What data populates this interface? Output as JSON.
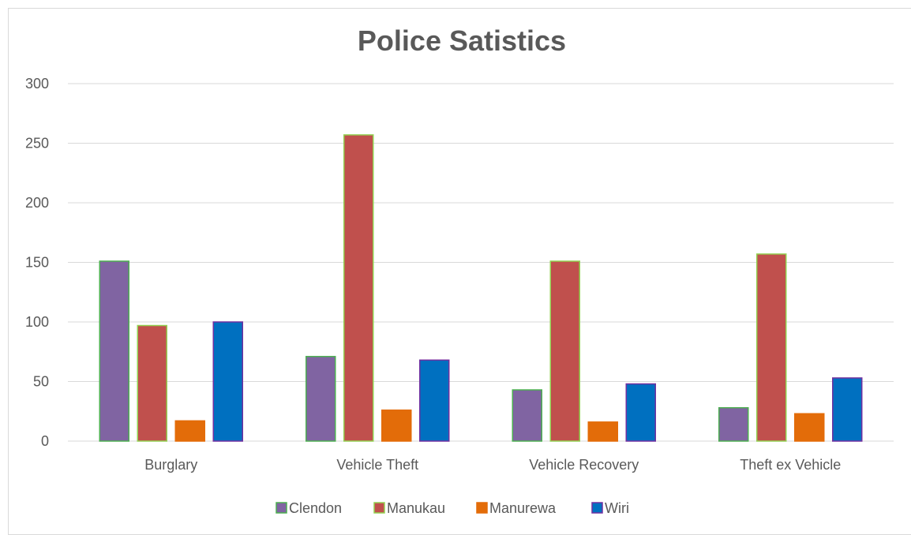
{
  "chart_data": {
    "type": "bar",
    "title": "Police Satistics",
    "xlabel": "",
    "ylabel": "",
    "ylim": [
      0,
      300
    ],
    "yticks": [
      "0",
      "50",
      "100",
      "150",
      "200",
      "250",
      "300"
    ],
    "grid": true,
    "legend_position": "bottom",
    "categories": [
      "Burglary",
      "Vehicle Theft",
      "Vehicle Recovery",
      "Theft ex Vehicle"
    ],
    "series": [
      {
        "name": "Clendon",
        "color": "#8064a2",
        "border": "#4caf50",
        "values": [
          151,
          71,
          43,
          28
        ]
      },
      {
        "name": "Manukau",
        "color": "#c0504d",
        "border": "#92d050",
        "values": [
          97,
          257,
          151,
          157
        ]
      },
      {
        "name": "Manurewa",
        "color": "#e36c09",
        "border": "#e36c09",
        "values": [
          17,
          26,
          16,
          23
        ]
      },
      {
        "name": "Wiri",
        "color": "#0070c0",
        "border": "#7030a0",
        "values": [
          100,
          68,
          48,
          53
        ]
      }
    ]
  }
}
